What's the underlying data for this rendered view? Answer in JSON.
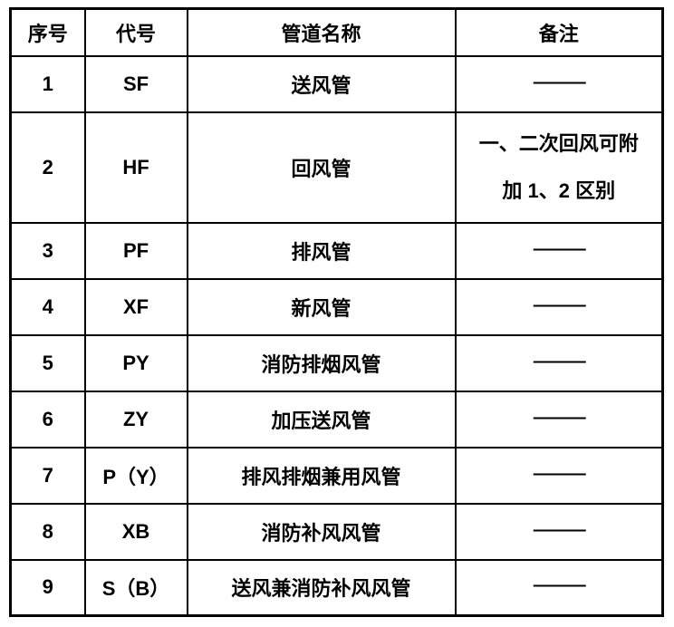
{
  "table": {
    "headers": {
      "no": "序号",
      "code": "代号",
      "name": "管道名称",
      "remark": "备注"
    },
    "rows": [
      {
        "no": "1",
        "code": "SF",
        "name": "送风管",
        "remark": "——"
      },
      {
        "no": "2",
        "code": "HF",
        "name": "回风管",
        "remark_line1": "一、二次回风可附",
        "remark_line2": "加 1、2 区别"
      },
      {
        "no": "3",
        "code": "PF",
        "name": "排风管",
        "remark": "——"
      },
      {
        "no": "4",
        "code": "XF",
        "name": "新风管",
        "remark": "——"
      },
      {
        "no": "5",
        "code": "PY",
        "name": "消防排烟风管",
        "remark": "——"
      },
      {
        "no": "6",
        "code": "ZY",
        "name": "加压送风管",
        "remark": "——"
      },
      {
        "no": "7",
        "code": "P（Y）",
        "name": "排风排烟兼用风管",
        "remark": "——"
      },
      {
        "no": "8",
        "code": "XB",
        "name": "消防补风风管",
        "remark": "——"
      },
      {
        "no": "9",
        "code": "S（B）",
        "name": "送风兼消防补风风管",
        "remark": "——"
      }
    ],
    "colors": {
      "border": "#000000",
      "text": "#000000",
      "background": "#ffffff"
    }
  }
}
